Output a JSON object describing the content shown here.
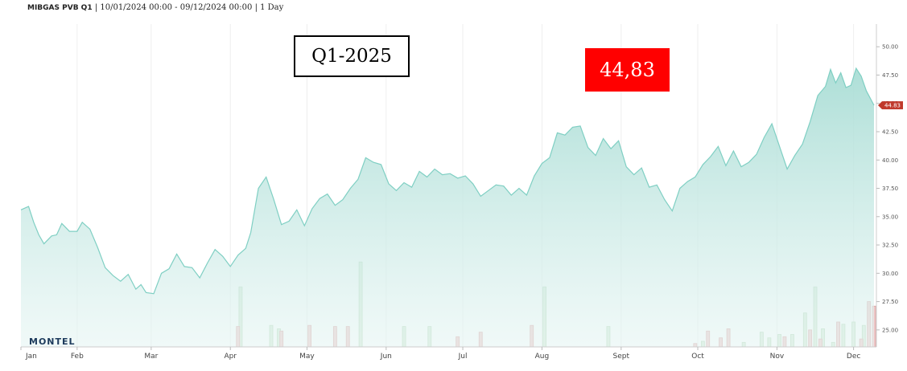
{
  "header": {
    "symbol": "MIBGAS PVB Q1",
    "range": "10/01/2024 00:00 - 09/12/2024 00:00",
    "interval": "1 Day",
    "separator": "|"
  },
  "overlay": {
    "contract_label": "Q1-2025",
    "price_label": "44,83"
  },
  "logo": "MONTEL",
  "colors": {
    "area_fill": "#bfe4df",
    "line": "#7fcfc3",
    "price_box": "#ff0000",
    "last_price_tag": "#c0392b",
    "volume_buy": "#d8ecd8",
    "volume_sell": "#f0c8c8"
  },
  "chart_data": {
    "type": "area",
    "x_range": [
      "2024-01-10",
      "2024-12-09"
    ],
    "ylim": [
      23.5,
      52
    ],
    "y_ticks": [
      "50.00",
      "47.50",
      "45.00",
      "42.50",
      "40.00",
      "37.50",
      "35.00",
      "32.50",
      "30.00",
      "27.50",
      "25.00"
    ],
    "y_tick_values": [
      50,
      47.5,
      45,
      42.5,
      40,
      37.5,
      35,
      32.5,
      30,
      27.5,
      25
    ],
    "x_ticks": [
      {
        "label": "Jan",
        "date": "2024-01-10"
      },
      {
        "label": "Feb",
        "date": "2024-02-01"
      },
      {
        "label": "Mar",
        "date": "2024-03-01"
      },
      {
        "label": "Apr",
        "date": "2024-04-01"
      },
      {
        "label": "May",
        "date": "2024-05-01"
      },
      {
        "label": "Jun",
        "date": "2024-06-01"
      },
      {
        "label": "Jul",
        "date": "2024-07-01"
      },
      {
        "label": "Aug",
        "date": "2024-08-01"
      },
      {
        "label": "Sept",
        "date": "2024-09-01"
      },
      {
        "label": "Oct",
        "date": "2024-10-01"
      },
      {
        "label": "Nov",
        "date": "2024-11-01"
      },
      {
        "label": "Dec",
        "date": "2024-12-01"
      }
    ],
    "last_value": 44.83,
    "last_value_label": "44.83",
    "series": [
      {
        "points": [
          [
            "2024-01-10",
            35.6
          ],
          [
            "2024-01-13",
            35.9
          ],
          [
            "2024-01-15",
            34.5
          ],
          [
            "2024-01-17",
            33.4
          ],
          [
            "2024-01-19",
            32.6
          ],
          [
            "2024-01-22",
            33.3
          ],
          [
            "2024-01-24",
            33.4
          ],
          [
            "2024-01-26",
            34.4
          ],
          [
            "2024-01-29",
            33.7
          ],
          [
            "2024-02-01",
            33.7
          ],
          [
            "2024-02-03",
            34.5
          ],
          [
            "2024-02-06",
            33.9
          ],
          [
            "2024-02-09",
            32.3
          ],
          [
            "2024-02-12",
            30.5
          ],
          [
            "2024-02-15",
            29.8
          ],
          [
            "2024-02-18",
            29.3
          ],
          [
            "2024-02-21",
            29.9
          ],
          [
            "2024-02-24",
            28.6
          ],
          [
            "2024-02-26",
            29.0
          ],
          [
            "2024-02-28",
            28.3
          ],
          [
            "2024-03-02",
            28.2
          ],
          [
            "2024-03-05",
            30.0
          ],
          [
            "2024-03-08",
            30.4
          ],
          [
            "2024-03-11",
            31.7
          ],
          [
            "2024-03-14",
            30.6
          ],
          [
            "2024-03-17",
            30.5
          ],
          [
            "2024-03-20",
            29.6
          ],
          [
            "2024-03-23",
            30.9
          ],
          [
            "2024-03-26",
            32.1
          ],
          [
            "2024-03-29",
            31.5
          ],
          [
            "2024-04-01",
            30.6
          ],
          [
            "2024-04-04",
            31.6
          ],
          [
            "2024-04-07",
            32.2
          ],
          [
            "2024-04-09",
            33.6
          ],
          [
            "2024-04-12",
            37.5
          ],
          [
            "2024-04-15",
            38.5
          ],
          [
            "2024-04-18",
            36.5
          ],
          [
            "2024-04-21",
            34.3
          ],
          [
            "2024-04-24",
            34.6
          ],
          [
            "2024-04-27",
            35.6
          ],
          [
            "2024-04-30",
            34.2
          ],
          [
            "2024-05-03",
            35.7
          ],
          [
            "2024-05-06",
            36.6
          ],
          [
            "2024-05-09",
            37.0
          ],
          [
            "2024-05-12",
            36.0
          ],
          [
            "2024-05-15",
            36.5
          ],
          [
            "2024-05-18",
            37.5
          ],
          [
            "2024-05-21",
            38.3
          ],
          [
            "2024-05-24",
            40.2
          ],
          [
            "2024-05-27",
            39.8
          ],
          [
            "2024-05-30",
            39.6
          ],
          [
            "2024-06-02",
            37.9
          ],
          [
            "2024-06-05",
            37.3
          ],
          [
            "2024-06-08",
            38.0
          ],
          [
            "2024-06-11",
            37.6
          ],
          [
            "2024-06-14",
            39.0
          ],
          [
            "2024-06-17",
            38.5
          ],
          [
            "2024-06-20",
            39.2
          ],
          [
            "2024-06-23",
            38.7
          ],
          [
            "2024-06-26",
            38.8
          ],
          [
            "2024-06-29",
            38.4
          ],
          [
            "2024-07-02",
            38.6
          ],
          [
            "2024-07-05",
            37.9
          ],
          [
            "2024-07-08",
            36.8
          ],
          [
            "2024-07-11",
            37.3
          ],
          [
            "2024-07-14",
            37.8
          ],
          [
            "2024-07-17",
            37.7
          ],
          [
            "2024-07-20",
            36.9
          ],
          [
            "2024-07-23",
            37.5
          ],
          [
            "2024-07-26",
            36.9
          ],
          [
            "2024-07-29",
            38.6
          ],
          [
            "2024-08-01",
            39.7
          ],
          [
            "2024-08-04",
            40.2
          ],
          [
            "2024-08-07",
            42.4
          ],
          [
            "2024-08-10",
            42.2
          ],
          [
            "2024-08-13",
            42.9
          ],
          [
            "2024-08-16",
            43.0
          ],
          [
            "2024-08-19",
            41.1
          ],
          [
            "2024-08-22",
            40.4
          ],
          [
            "2024-08-25",
            41.9
          ],
          [
            "2024-08-28",
            41.0
          ],
          [
            "2024-08-31",
            41.7
          ],
          [
            "2024-09-03",
            39.4
          ],
          [
            "2024-09-06",
            38.7
          ],
          [
            "2024-09-09",
            39.3
          ],
          [
            "2024-09-12",
            37.6
          ],
          [
            "2024-09-15",
            37.8
          ],
          [
            "2024-09-18",
            36.5
          ],
          [
            "2024-09-21",
            35.5
          ],
          [
            "2024-09-24",
            37.5
          ],
          [
            "2024-09-27",
            38.1
          ],
          [
            "2024-09-30",
            38.5
          ],
          [
            "2024-10-03",
            39.6
          ],
          [
            "2024-10-06",
            40.3
          ],
          [
            "2024-10-09",
            41.2
          ],
          [
            "2024-10-12",
            39.5
          ],
          [
            "2024-10-15",
            40.8
          ],
          [
            "2024-10-18",
            39.4
          ],
          [
            "2024-10-21",
            39.8
          ],
          [
            "2024-10-24",
            40.5
          ],
          [
            "2024-10-27",
            42.0
          ],
          [
            "2024-10-30",
            43.2
          ],
          [
            "2024-11-02",
            41.2
          ],
          [
            "2024-11-05",
            39.2
          ],
          [
            "2024-11-08",
            40.4
          ],
          [
            "2024-11-11",
            41.4
          ],
          [
            "2024-11-14",
            43.4
          ],
          [
            "2024-11-17",
            45.7
          ],
          [
            "2024-11-20",
            46.5
          ],
          [
            "2024-11-22",
            48.0
          ],
          [
            "2024-11-24",
            46.8
          ],
          [
            "2024-11-26",
            47.7
          ],
          [
            "2024-11-28",
            46.4
          ],
          [
            "2024-11-30",
            46.6
          ],
          [
            "2024-12-02",
            48.1
          ],
          [
            "2024-12-04",
            47.4
          ],
          [
            "2024-12-06",
            46.1
          ],
          [
            "2024-12-09",
            44.83
          ]
        ]
      }
    ],
    "volume_buy": [
      [
        "2024-04-05",
        28.8
      ],
      [
        "2024-04-17",
        25.4
      ],
      [
        "2024-04-20",
        25.1
      ],
      [
        "2024-05-22",
        31.0
      ],
      [
        "2024-06-08",
        25.3
      ],
      [
        "2024-06-18",
        25.3
      ],
      [
        "2024-08-02",
        28.8
      ],
      [
        "2024-08-27",
        25.3
      ],
      [
        "2024-10-03",
        24.0
      ],
      [
        "2024-10-19",
        23.9
      ],
      [
        "2024-10-26",
        24.8
      ],
      [
        "2024-10-29",
        24.3
      ],
      [
        "2024-11-02",
        24.6
      ],
      [
        "2024-11-07",
        24.6
      ],
      [
        "2024-11-12",
        26.5
      ],
      [
        "2024-11-16",
        28.8
      ],
      [
        "2024-11-19",
        25.1
      ],
      [
        "2024-11-23",
        23.9
      ],
      [
        "2024-11-27",
        25.5
      ],
      [
        "2024-12-01",
        25.7
      ],
      [
        "2024-12-05",
        25.4
      ]
    ],
    "volume_sell": [
      [
        "2024-04-04",
        25.3
      ],
      [
        "2024-04-21",
        24.9
      ],
      [
        "2024-05-02",
        25.4
      ],
      [
        "2024-05-12",
        25.3
      ],
      [
        "2024-05-17",
        25.3
      ],
      [
        "2024-06-29",
        24.4
      ],
      [
        "2024-07-08",
        24.8
      ],
      [
        "2024-07-28",
        25.4
      ],
      [
        "2024-09-30",
        23.8
      ],
      [
        "2024-10-05",
        24.9
      ],
      [
        "2024-10-10",
        24.3
      ],
      [
        "2024-10-13",
        25.1
      ],
      [
        "2024-11-04",
        24.4
      ],
      [
        "2024-11-14",
        25.0
      ],
      [
        "2024-11-18",
        24.2
      ],
      [
        "2024-11-25",
        25.7
      ],
      [
        "2024-12-04",
        24.2
      ],
      [
        "2024-12-07",
        27.5
      ],
      [
        "2024-12-09",
        27.1
      ]
    ]
  }
}
